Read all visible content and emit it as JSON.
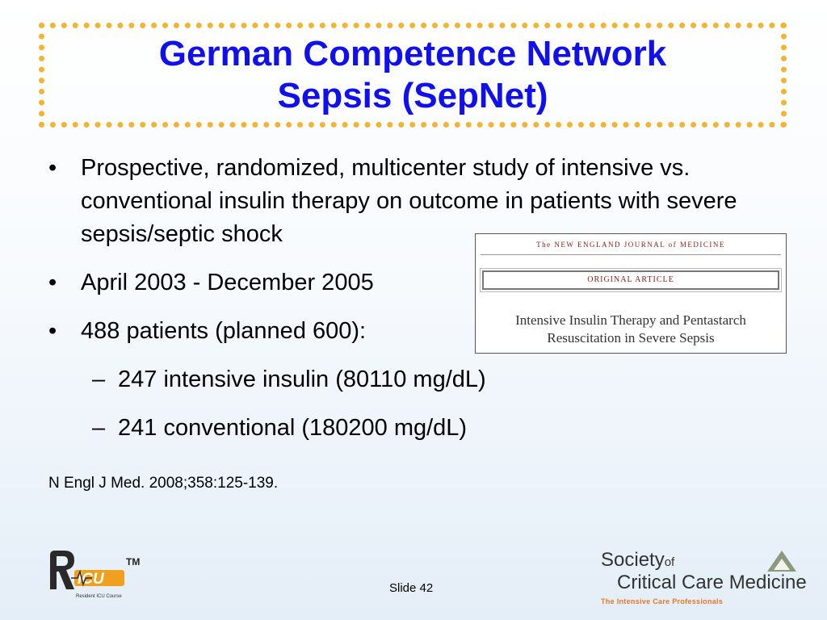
{
  "title": {
    "line1": "German Competence Network",
    "line2": "Sepsis (SepNet)"
  },
  "bullets": [
    {
      "text": "Prospective, randomized, multicenter study of intensive vs. conventional insulin therapy on outcome in patients with severe sepsis/septic shock"
    },
    {
      "text": "April 2003 - December 2005"
    },
    {
      "text": "488 patients (planned 600):"
    }
  ],
  "bullet_glyph": "•",
  "sub_bullets": [
    {
      "text": "247 intensive insulin (80110 mg/dL)"
    },
    {
      "text": "241 conventional (180200 mg/dL)"
    }
  ],
  "dash_glyph": "–",
  "reference": "N Engl J Med. 2008;358:125-139.",
  "nejm_image": {
    "journal": "The NEW ENGLAND JOURNAL of MEDICINE",
    "section": "ORIGINAL ARTICLE",
    "title_line1": "Intensive Insulin Therapy and Pentastarch",
    "title_line2": "Resuscitation in Severe Sepsis"
  },
  "footer": {
    "slide_number": "Slide 42",
    "ricu_logo": {
      "letters": "RICU",
      "tm": "TM",
      "tagline": "Resident ICU Course"
    },
    "sccm_logo": {
      "line1": "Society",
      "line1_of": "of",
      "line2": "Critical Care Medicine",
      "tagline": "The Intensive Care Professionals"
    }
  },
  "colors": {
    "title_blue": "#1010ee",
    "border_gold": "#f2b431",
    "nejm_red": "#8b1a1a",
    "sccm_orange": "#e87722",
    "ricu_orange": "#f0a020"
  }
}
